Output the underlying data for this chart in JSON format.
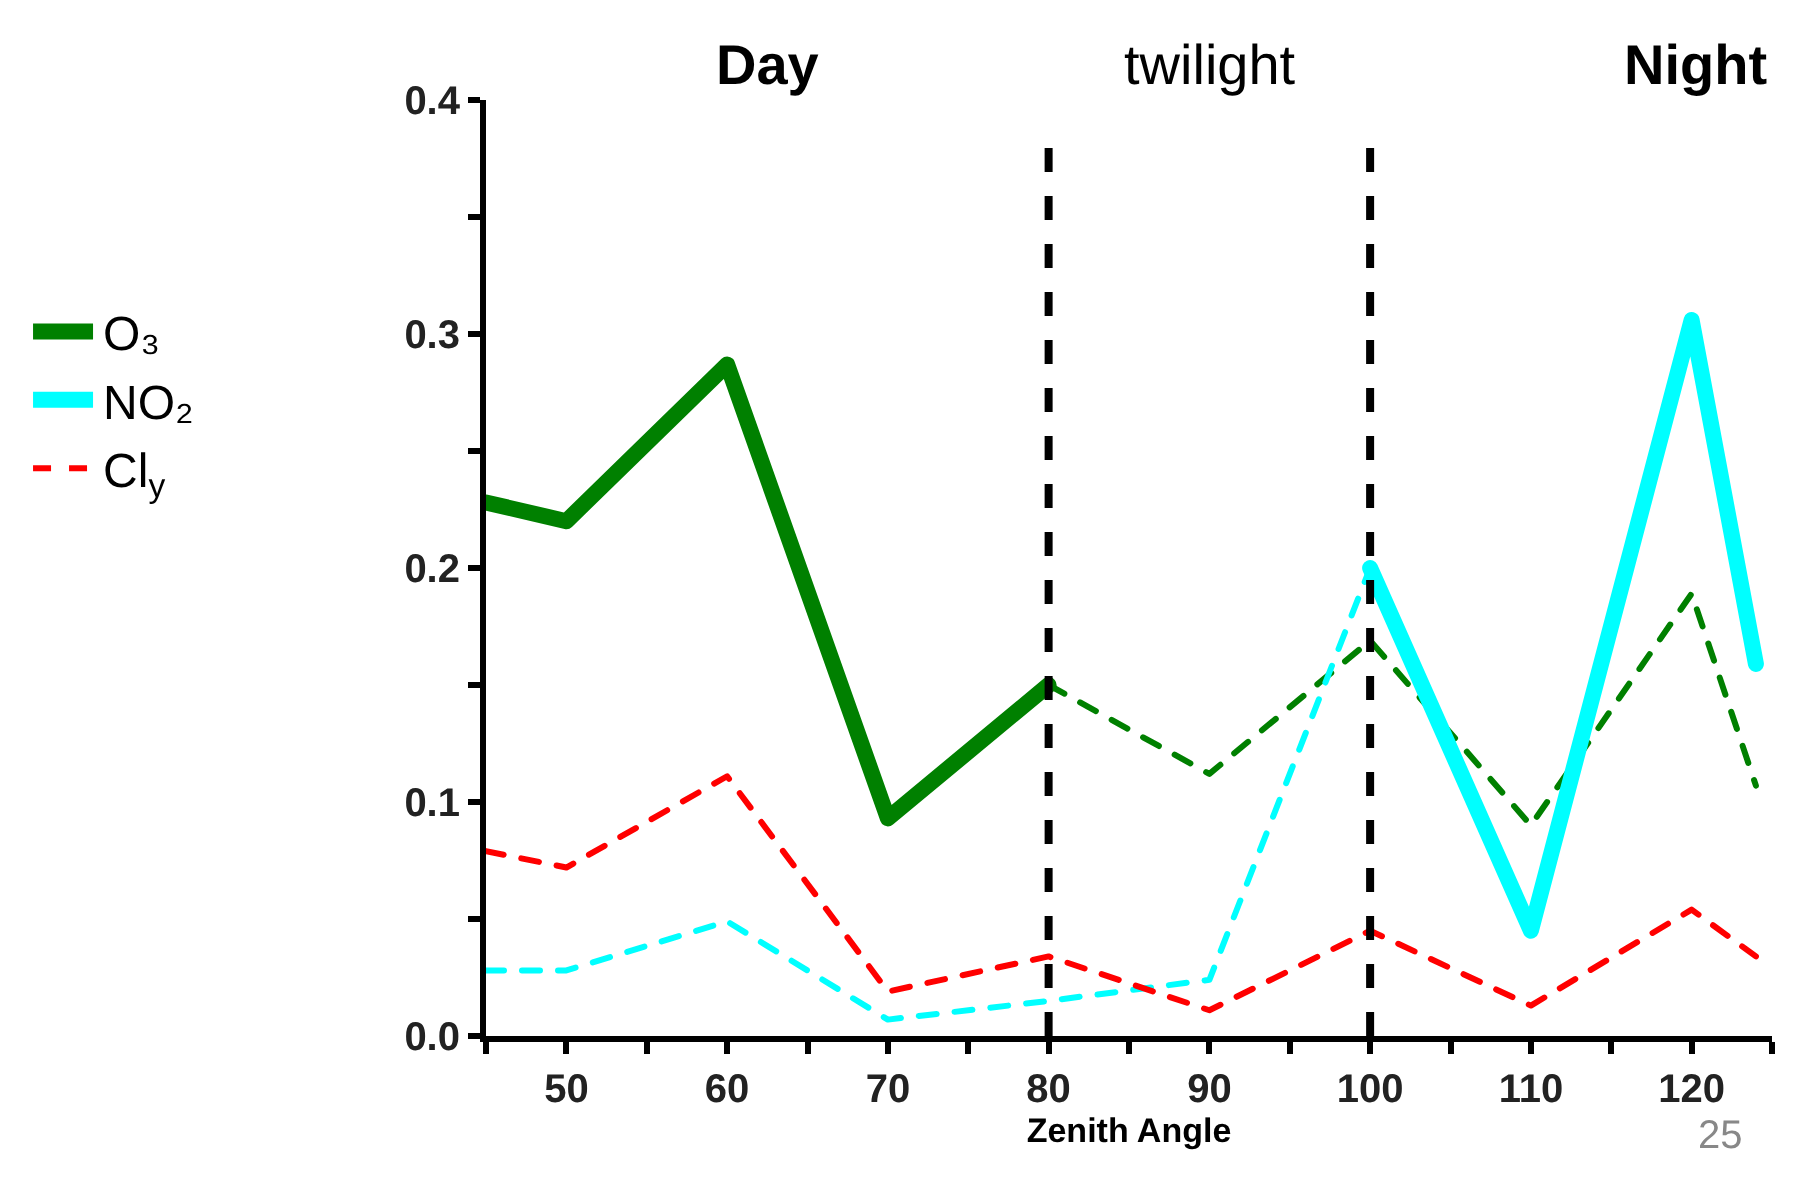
{
  "chart_data": {
    "type": "line",
    "xlabel": "Zenith Angle",
    "annotations": [
      "Day",
      "twilight",
      "Night",
      "25"
    ],
    "xlim": [
      45,
      125
    ],
    "xticks": [
      {
        "value": 45,
        "label": null
      },
      50,
      {
        "value": 55,
        "label": null
      },
      60,
      {
        "value": 65,
        "label": null
      },
      70,
      {
        "value": 75,
        "label": null
      },
      80,
      {
        "value": 85,
        "label": null
      },
      90,
      {
        "value": 95,
        "label": null
      },
      100,
      {
        "value": 105,
        "label": null
      },
      110,
      {
        "value": 115,
        "label": null
      },
      120,
      {
        "value": 125,
        "label": null
      }
    ],
    "ylim": [
      0,
      0.4
    ],
    "yticks": [
      "0.0",
      {
        "value": 0.05,
        "label": null
      },
      {
        "value": 0.1,
        "label": "0.1"
      },
      {
        "value": 0.15,
        "label": null
      },
      {
        "value": 0.2,
        "label": "0.2"
      },
      {
        "value": 0.25,
        "label": null
      },
      {
        "value": 0.3,
        "label": "0.3"
      },
      {
        "value": 0.35,
        "label": null
      },
      {
        "value": 0.4,
        "label": "0.4"
      }
    ],
    "legend": "left",
    "ref_lines": [
      {
        "axis": "x",
        "value": 80,
        "label": null,
        "color": "#000000",
        "line_style": "dashed"
      },
      {
        "axis": "x",
        "value": 100,
        "label": null,
        "color": "#000000",
        "line_style": "dashed"
      }
    ],
    "series": [
      {
        "name": "O₃",
        "color": "#008000",
        "line_style": "solid",
        "x": [
          45,
          50,
          60,
          70,
          80
        ],
        "values": [
          0.228,
          0.22,
          0.287,
          0.093,
          0.15
        ]
      },
      {
        "color": "#008000",
        "line_style": "dashed",
        "x": [
          80,
          90,
          100,
          110,
          120,
          124
        ],
        "values": [
          0.15,
          0.112,
          0.169,
          0.09,
          0.189,
          0.107
        ]
      },
      {
        "name": "NO₂",
        "color": "#00ffff",
        "line_style": "solid",
        "x": [
          100,
          110,
          120,
          124
        ],
        "values": [
          0.2,
          0.045,
          0.306,
          0.159
        ]
      },
      {
        "color": "#00ffff",
        "line_style": "dashed",
        "x": [
          45,
          50,
          60,
          70,
          80,
          90,
          100
        ],
        "values": [
          0.028,
          0.028,
          0.049,
          0.007,
          0.015,
          0.024,
          0.2
        ]
      },
      {
        "name": "Cl$_{y}$",
        "color": "#ff0000",
        "line_style": "dashed",
        "x": [
          45,
          50,
          60,
          70,
          80,
          90,
          100,
          110,
          120,
          124
        ],
        "values": [
          0.079,
          0.072,
          0.111,
          0.019,
          0.034,
          0.011,
          0.045,
          0.013,
          0.054,
          0.034
        ]
      }
    ]
  }
}
